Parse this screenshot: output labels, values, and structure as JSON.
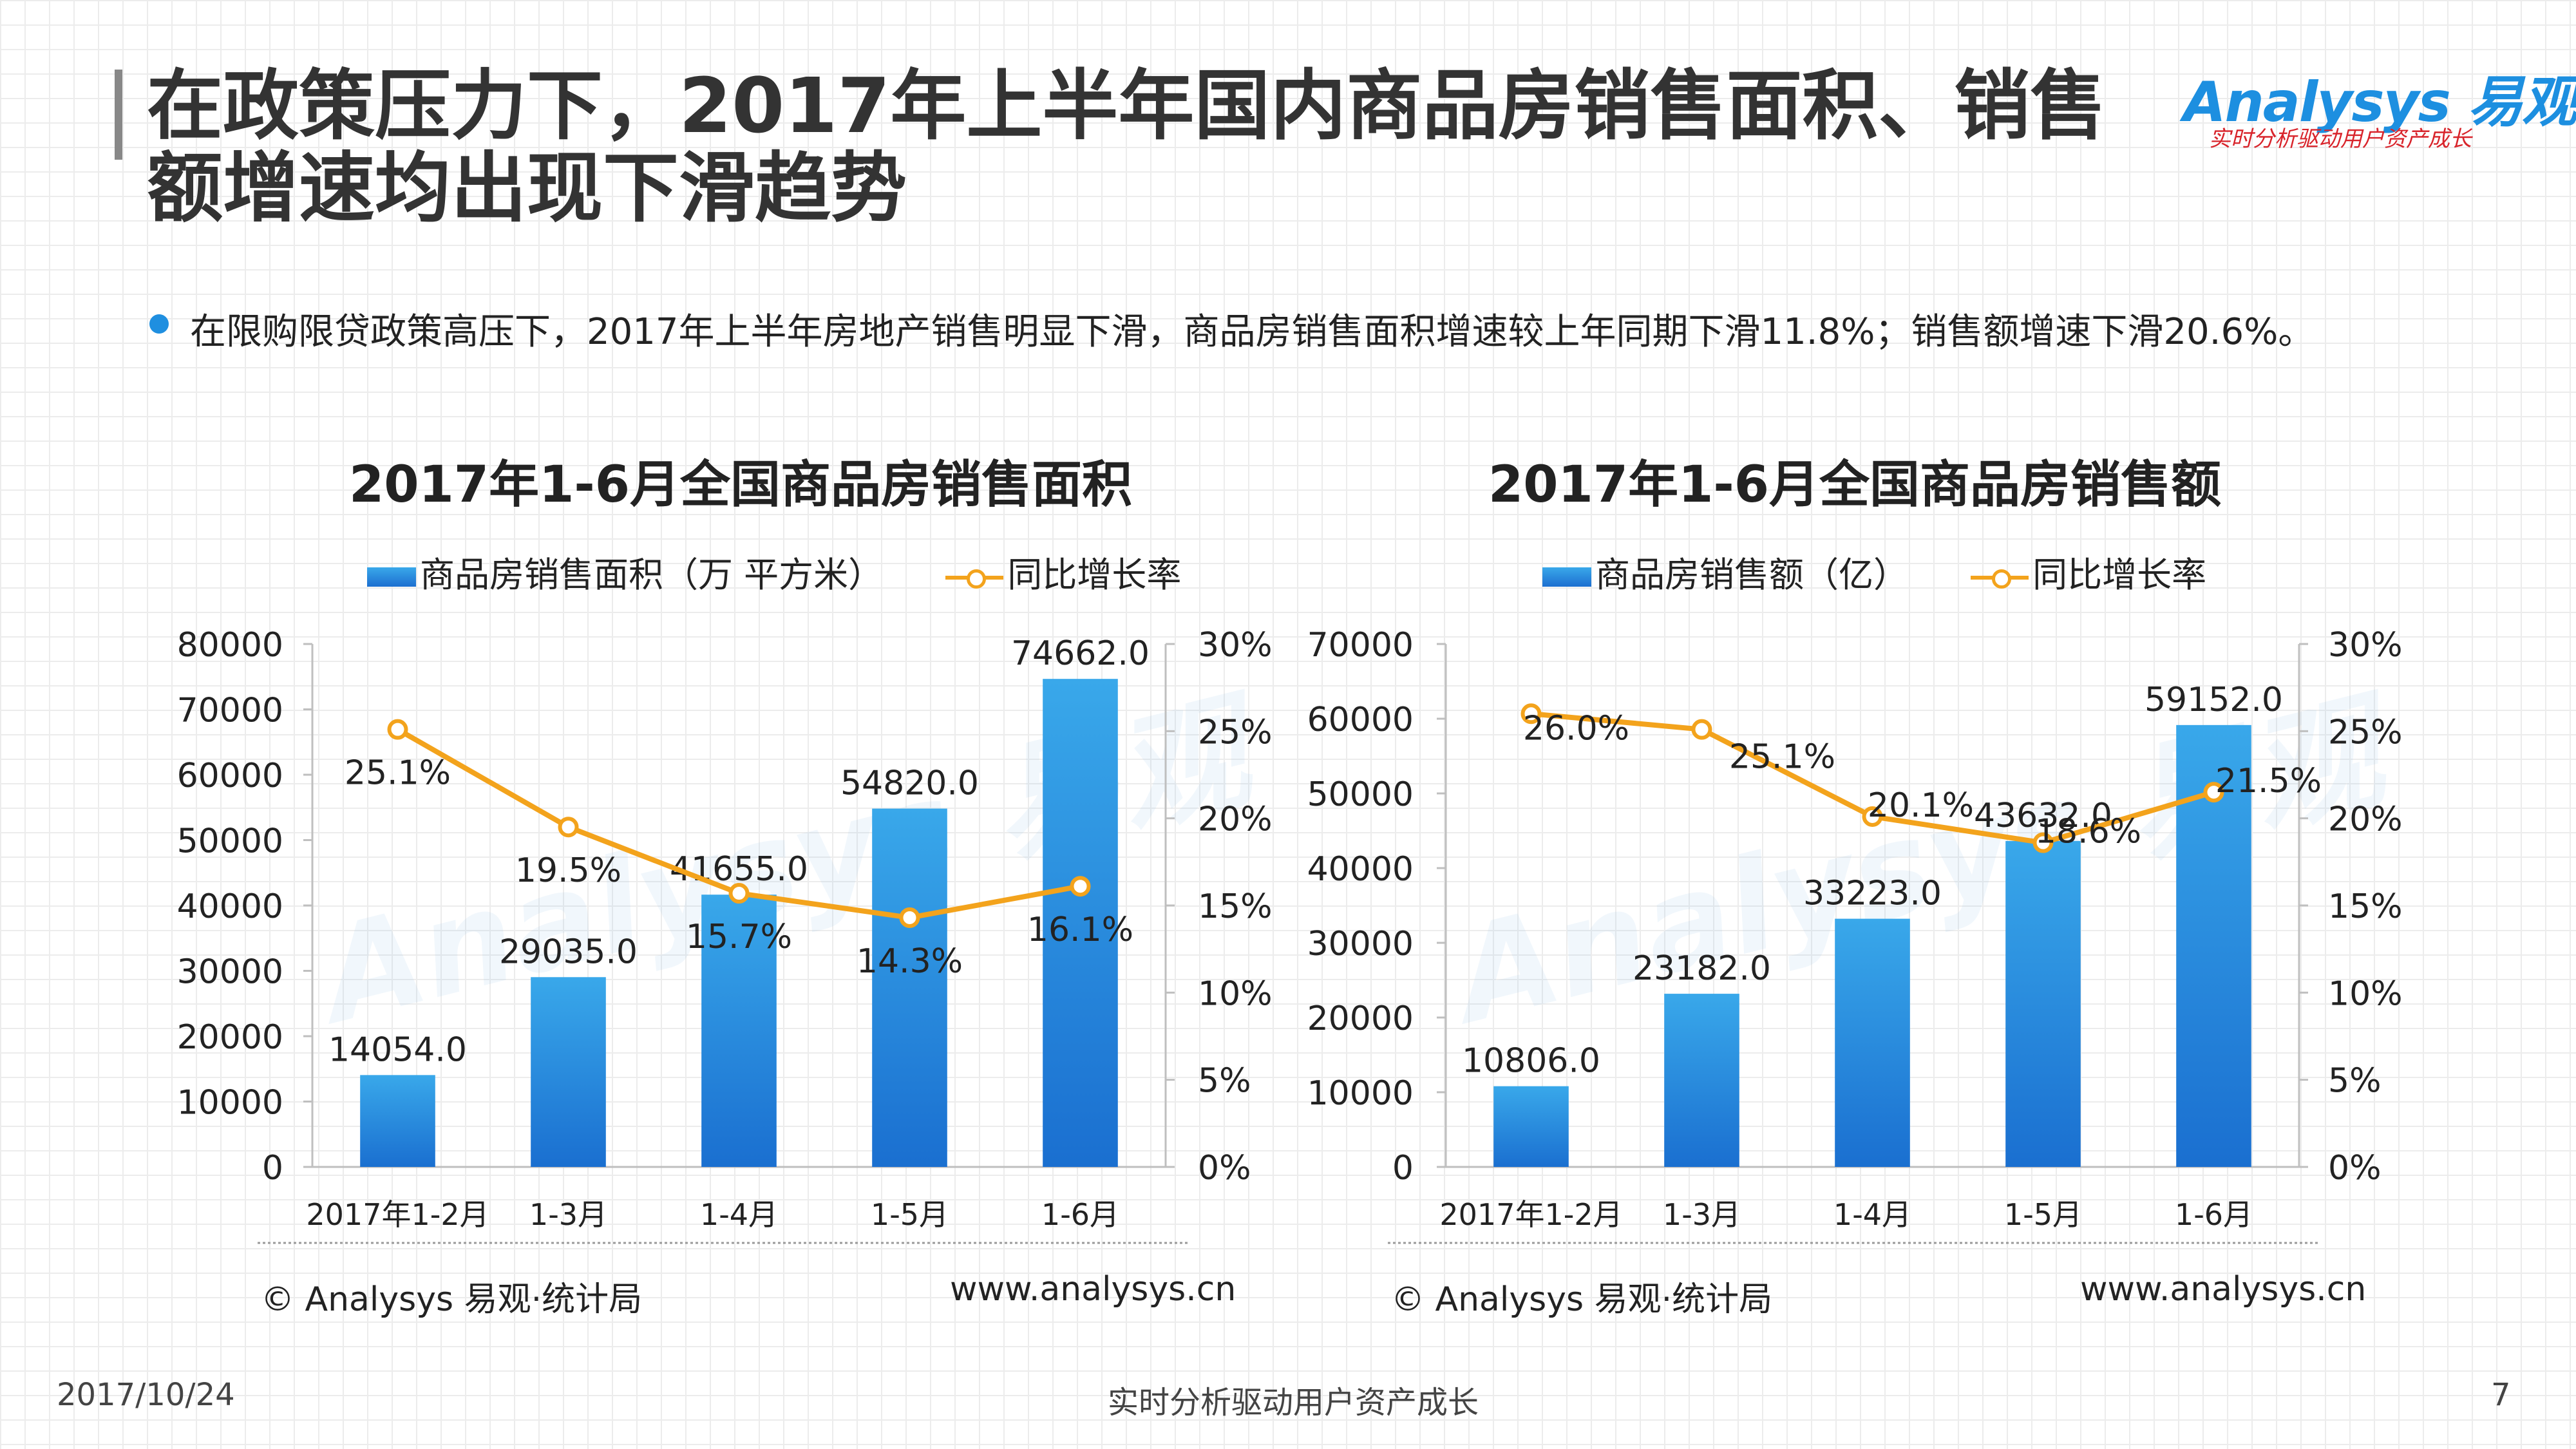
{
  "title": "在政策压力下，2017年上半年国内商品房销售面积、销售额增速均出现下滑趋势",
  "logo": {
    "main": "Analysys 易观",
    "sub": "实时分析驱动用户资产成长"
  },
  "bullet": "在限购限贷政策高压下，2017年上半年房地产销售明显下滑，商品房销售面积增速较上年同期下滑11.8%；销售额增速下滑20.6%。",
  "chart_data": [
    {
      "type": "bar",
      "title": "2017年1-6月全国商品房销售面积",
      "categories": [
        "2017年1-2月",
        "1-3月",
        "1-4月",
        "1-5月",
        "1-6月"
      ],
      "series": [
        {
          "name": "商品房销售面积（万 平方米）",
          "type": "bar",
          "axis": "left",
          "values": [
            14054.0,
            29035.0,
            41655.0,
            54820.0,
            74662.0
          ],
          "labels": [
            "14054.0",
            "29035.0",
            "41655.0",
            "54820.0",
            "74662.0"
          ]
        },
        {
          "name": "同比增长率",
          "type": "line",
          "axis": "right",
          "values": [
            25.1,
            19.5,
            15.7,
            14.3,
            16.1
          ],
          "labels": [
            "25.1%",
            "19.5%",
            "15.7%",
            "14.3%",
            "16.1%"
          ]
        }
      ],
      "ylim_left": [
        0,
        80000
      ],
      "yticks_left": [
        "0",
        "10000",
        "20000",
        "30000",
        "40000",
        "50000",
        "60000",
        "70000",
        "80000"
      ],
      "ylim_right": [
        0,
        30
      ],
      "yticks_right": [
        "0%",
        "5%",
        "10%",
        "15%",
        "20%",
        "25%",
        "30%"
      ],
      "source": "© Analysys 易观·统计局",
      "url": "www.analysys.cn"
    },
    {
      "type": "bar",
      "title": "2017年1-6月全国商品房销售额",
      "categories": [
        "2017年1-2月",
        "1-3月",
        "1-4月",
        "1-5月",
        "1-6月"
      ],
      "series": [
        {
          "name": "商品房销售额（亿）",
          "type": "bar",
          "axis": "left",
          "values": [
            10806.0,
            23182.0,
            33223.0,
            43632.0,
            59152.0
          ],
          "labels": [
            "10806.0",
            "23182.0",
            "33223.0",
            "43632.0",
            "59152.0"
          ]
        },
        {
          "name": "同比增长率",
          "type": "line",
          "axis": "right",
          "values": [
            26.0,
            25.1,
            20.1,
            18.6,
            21.5
          ],
          "labels": [
            "26.0%",
            "25.1%",
            "20.1%",
            "18.6%",
            "21.5%"
          ]
        }
      ],
      "ylim_left": [
        0,
        70000
      ],
      "yticks_left": [
        "0",
        "10000",
        "20000",
        "30000",
        "40000",
        "50000",
        "60000",
        "70000"
      ],
      "ylim_right": [
        0,
        30
      ],
      "yticks_right": [
        "0%",
        "5%",
        "10%",
        "15%",
        "20%",
        "25%",
        "30%"
      ],
      "source": "© Analysys 易观·统计局",
      "url": "www.analysys.cn"
    }
  ],
  "footer": {
    "date": "2017/10/24",
    "slogan": "实时分析驱动用户资产成长",
    "page": "7"
  },
  "colors": {
    "bar_top": "#39a8ea",
    "bar_bottom": "#1a6fd0",
    "line": "#f3a31c",
    "accent": "#1f8fe0"
  }
}
